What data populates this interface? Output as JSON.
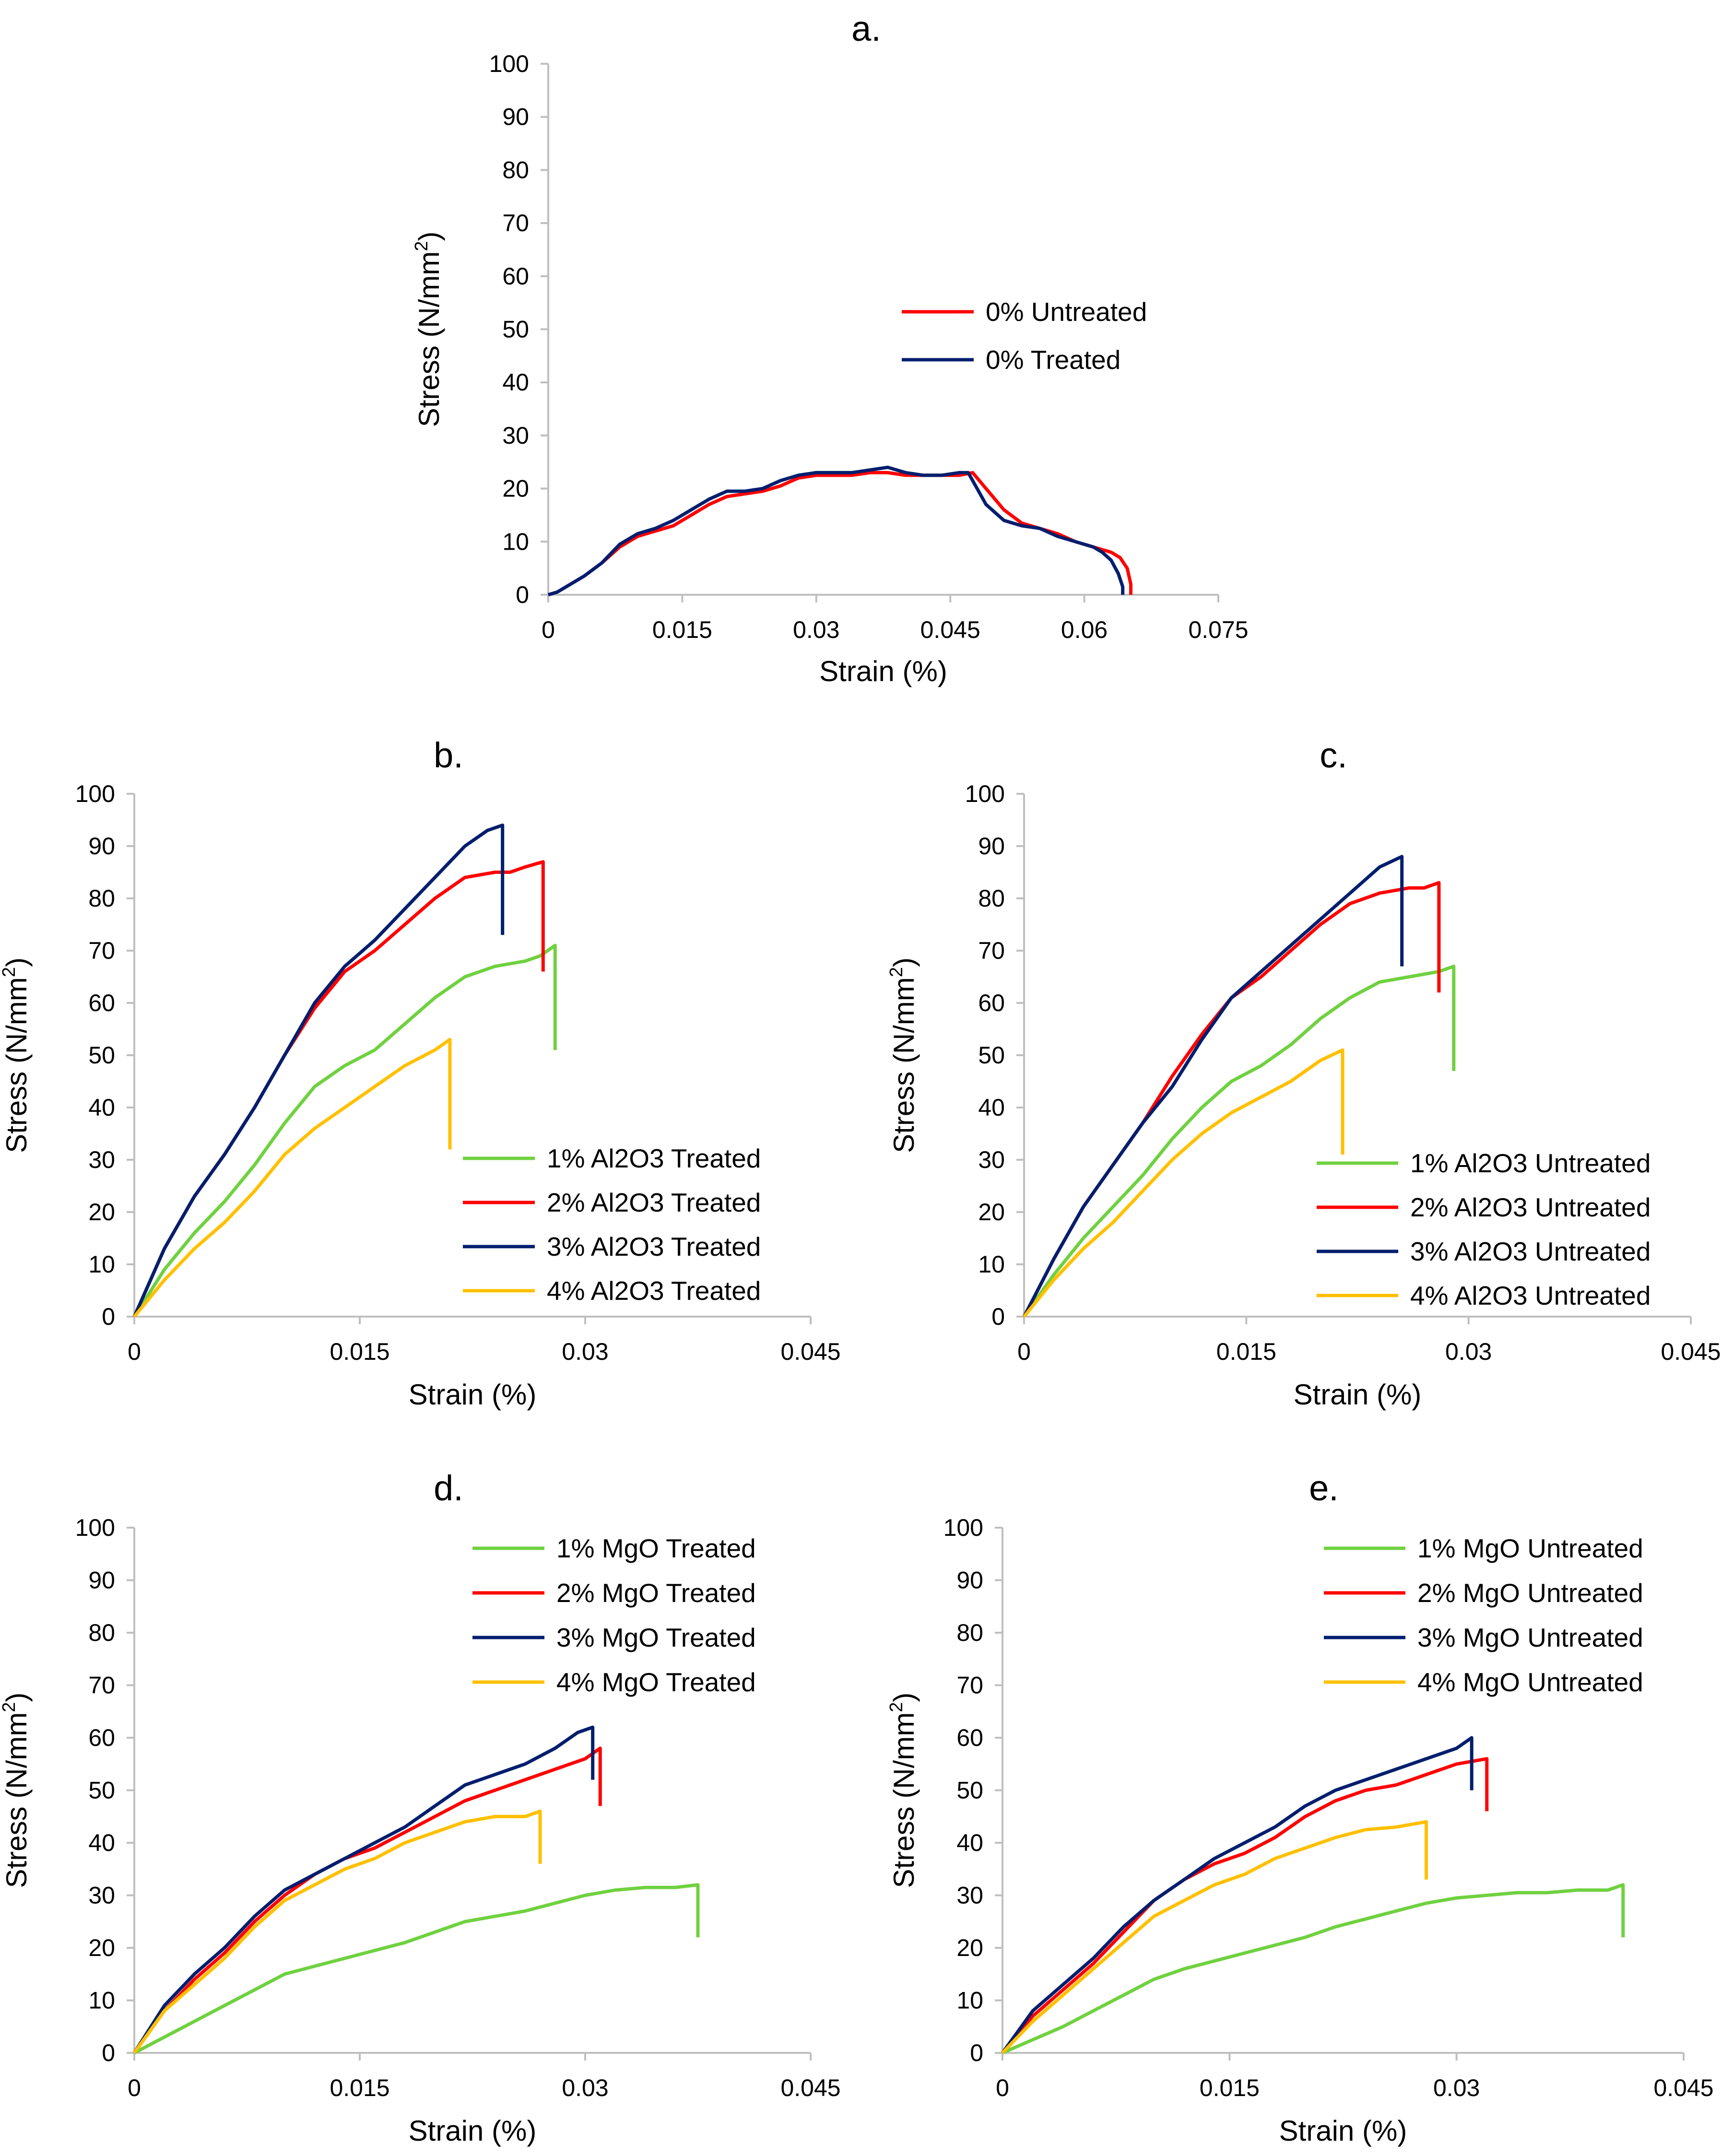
{
  "figure": {
    "colors": {
      "green": "#6fd13f",
      "red": "#ff0000",
      "navy": "#001e6e",
      "yellow": "#ffc000",
      "axis": "#bfbfbf"
    }
  },
  "chart_data": [
    {
      "id": "a",
      "title": "a.",
      "type": "line",
      "xlabel": "Strain (%)",
      "ylabel_main": "Stress (N/mm",
      "ylabel_sup": "2",
      "ylabel_end": ")",
      "xlim": [
        0,
        0.075
      ],
      "ylim": [
        0,
        100
      ],
      "xticks": [
        0,
        0.015,
        0.03,
        0.045,
        0.06,
        0.075
      ],
      "xtick_labels": [
        "0",
        "0.015",
        "0.03",
        "0.045",
        "0.06",
        "0.075"
      ],
      "yticks": [
        0,
        10,
        20,
        30,
        40,
        50,
        60,
        70,
        80,
        90,
        100
      ],
      "ytick_labels": [
        "0",
        "10",
        "20",
        "30",
        "40",
        "50",
        "60",
        "70",
        "80",
        "90",
        "100"
      ],
      "legend_position": "center-right",
      "series": [
        {
          "name": "0% Untreated",
          "color": "#ff0000",
          "x": [
            0,
            0.001,
            0.002,
            0.004,
            0.006,
            0.008,
            0.01,
            0.012,
            0.014,
            0.016,
            0.018,
            0.02,
            0.022,
            0.024,
            0.026,
            0.028,
            0.03,
            0.032,
            0.034,
            0.036,
            0.038,
            0.04,
            0.042,
            0.044,
            0.046,
            0.0475,
            0.049,
            0.051,
            0.053,
            0.055,
            0.057,
            0.059,
            0.061,
            0.063,
            0.064,
            0.0648,
            0.0652,
            0.0652
          ],
          "y": [
            0,
            0.5,
            1.5,
            3.5,
            6,
            9,
            11,
            12,
            13,
            15,
            17,
            18.5,
            19,
            19.5,
            20.5,
            22,
            22.5,
            22.5,
            22.5,
            23,
            23,
            22.5,
            22.5,
            22.5,
            22.5,
            23,
            20,
            16,
            13.5,
            12.5,
            11.5,
            10,
            9,
            8,
            7,
            5,
            2,
            0
          ]
        },
        {
          "name": "0% Treated",
          "color": "#001e6e",
          "x": [
            0,
            0.001,
            0.002,
            0.004,
            0.006,
            0.008,
            0.01,
            0.012,
            0.014,
            0.016,
            0.018,
            0.02,
            0.022,
            0.024,
            0.026,
            0.028,
            0.03,
            0.032,
            0.034,
            0.036,
            0.038,
            0.04,
            0.042,
            0.044,
            0.046,
            0.047,
            0.049,
            0.051,
            0.053,
            0.055,
            0.057,
            0.059,
            0.061,
            0.062,
            0.063,
            0.0638,
            0.0643,
            0.0643
          ],
          "y": [
            0,
            0.5,
            1.5,
            3.5,
            6,
            9.5,
            11.5,
            12.5,
            14,
            16,
            18,
            19.5,
            19.5,
            20,
            21.5,
            22.5,
            23,
            23,
            23,
            23.5,
            24,
            23,
            22.5,
            22.5,
            23,
            23,
            17,
            14,
            13,
            12.5,
            11,
            10,
            9,
            8,
            6.5,
            4,
            1.5,
            0
          ]
        }
      ]
    },
    {
      "id": "b",
      "title": "b.",
      "type": "line",
      "xlabel": "Strain (%)",
      "ylabel_main": "Stress (N/mm",
      "ylabel_sup": "2",
      "ylabel_end": ")",
      "xlim": [
        0,
        0.045
      ],
      "ylim": [
        0,
        100
      ],
      "xticks": [
        0,
        0.015,
        0.03,
        0.045
      ],
      "xtick_labels": [
        "0",
        "0.015",
        "0.03",
        "0.045"
      ],
      "yticks": [
        0,
        10,
        20,
        30,
        40,
        50,
        60,
        70,
        80,
        90,
        100
      ],
      "ytick_labels": [
        "0",
        "10",
        "20",
        "30",
        "40",
        "50",
        "60",
        "70",
        "80",
        "90",
        "100"
      ],
      "legend_position": "bottom-right",
      "series": [
        {
          "name": "1% Al2O3 Treated",
          "color": "#6fd13f",
          "x": [
            0,
            0.002,
            0.004,
            0.006,
            0.008,
            0.01,
            0.012,
            0.014,
            0.016,
            0.018,
            0.02,
            0.022,
            0.024,
            0.026,
            0.027,
            0.028,
            0.028
          ],
          "y": [
            0,
            9,
            16,
            22,
            29,
            37,
            44,
            48,
            51,
            56,
            61,
            65,
            67,
            68,
            69,
            71,
            51
          ]
        },
        {
          "name": "2% Al2O3 Treated",
          "color": "#ff0000",
          "x": [
            0,
            0.002,
            0.004,
            0.006,
            0.008,
            0.01,
            0.012,
            0.014,
            0.016,
            0.018,
            0.02,
            0.022,
            0.024,
            0.025,
            0.026,
            0.0272,
            0.0272
          ],
          "y": [
            0,
            13,
            23,
            31,
            40,
            50,
            59,
            66,
            70,
            75,
            80,
            84,
            85,
            85,
            86,
            87,
            66
          ]
        },
        {
          "name": "3% Al2O3 Treated",
          "color": "#001e6e",
          "x": [
            0,
            0.002,
            0.004,
            0.006,
            0.008,
            0.01,
            0.012,
            0.014,
            0.016,
            0.018,
            0.02,
            0.022,
            0.0235,
            0.0245,
            0.0245
          ],
          "y": [
            0,
            13,
            23,
            31,
            40,
            50,
            60,
            67,
            72,
            78,
            84,
            90,
            93,
            94,
            73
          ]
        },
        {
          "name": "4% Al2O3 Treated",
          "color": "#ffc000",
          "x": [
            0,
            0.002,
            0.004,
            0.006,
            0.008,
            0.01,
            0.012,
            0.014,
            0.016,
            0.018,
            0.02,
            0.021,
            0.021
          ],
          "y": [
            0,
            7,
            13,
            18,
            24,
            31,
            36,
            40,
            44,
            48,
            51,
            53,
            32
          ]
        }
      ]
    },
    {
      "id": "c",
      "title": "c.",
      "type": "line",
      "xlabel": "Strain (%)",
      "ylabel_main": "Stress (N/mm",
      "ylabel_sup": "2",
      "ylabel_end": ")",
      "xlim": [
        0,
        0.045
      ],
      "ylim": [
        0,
        100
      ],
      "xticks": [
        0,
        0.015,
        0.03,
        0.045
      ],
      "xtick_labels": [
        "0",
        "0.015",
        "0.03",
        "0.045"
      ],
      "yticks": [
        0,
        10,
        20,
        30,
        40,
        50,
        60,
        70,
        80,
        90,
        100
      ],
      "ytick_labels": [
        "0",
        "10",
        "20",
        "30",
        "40",
        "50",
        "60",
        "70",
        "80",
        "90",
        "100"
      ],
      "legend_position": "bottom-right",
      "series": [
        {
          "name": "1% Al2O3 Untreated",
          "color": "#6fd13f",
          "x": [
            0,
            0.002,
            0.004,
            0.006,
            0.008,
            0.01,
            0.012,
            0.014,
            0.016,
            0.018,
            0.02,
            0.022,
            0.024,
            0.026,
            0.028,
            0.029,
            0.029
          ],
          "y": [
            0,
            8,
            15,
            21,
            27,
            34,
            40,
            45,
            48,
            52,
            57,
            61,
            64,
            65,
            66,
            67,
            47
          ]
        },
        {
          "name": "2% Al2O3 Untreated",
          "color": "#ff0000",
          "x": [
            0,
            0.002,
            0.004,
            0.006,
            0.008,
            0.01,
            0.012,
            0.014,
            0.016,
            0.018,
            0.02,
            0.022,
            0.024,
            0.026,
            0.027,
            0.028,
            0.028
          ],
          "y": [
            0,
            11,
            21,
            29,
            37,
            46,
            54,
            61,
            65,
            70,
            75,
            79,
            81,
            82,
            82,
            83,
            62
          ]
        },
        {
          "name": "3% Al2O3 Untreated",
          "color": "#001e6e",
          "x": [
            0,
            0.002,
            0.004,
            0.006,
            0.008,
            0.01,
            0.012,
            0.014,
            0.016,
            0.018,
            0.02,
            0.022,
            0.024,
            0.0255,
            0.0255
          ],
          "y": [
            0,
            11,
            21,
            29,
            37,
            44,
            53,
            61,
            66,
            71,
            76,
            81,
            86,
            88,
            67
          ]
        },
        {
          "name": "4% Al2O3 Untreated",
          "color": "#ffc000",
          "x": [
            0,
            0.002,
            0.004,
            0.006,
            0.008,
            0.01,
            0.012,
            0.014,
            0.016,
            0.018,
            0.02,
            0.0215,
            0.0215
          ],
          "y": [
            0,
            7,
            13,
            18,
            24,
            30,
            35,
            39,
            42,
            45,
            49,
            51,
            31
          ]
        }
      ]
    },
    {
      "id": "d",
      "title": "d.",
      "type": "line",
      "xlabel": "Strain (%)",
      "ylabel_main": "Stress (N/mm",
      "ylabel_sup": "2",
      "ylabel_end": ")",
      "xlim": [
        0,
        0.045
      ],
      "ylim": [
        0,
        100
      ],
      "xticks": [
        0,
        0.015,
        0.03,
        0.045
      ],
      "xtick_labels": [
        "0",
        "0.015",
        "0.03",
        "0.045"
      ],
      "yticks": [
        0,
        10,
        20,
        30,
        40,
        50,
        60,
        70,
        80,
        90,
        100
      ],
      "ytick_labels": [
        "0",
        "10",
        "20",
        "30",
        "40",
        "50",
        "60",
        "70",
        "80",
        "90",
        "100"
      ],
      "legend_position": "top-right",
      "series": [
        {
          "name": "1% MgO Treated",
          "color": "#6fd13f",
          "x": [
            0,
            0.002,
            0.004,
            0.006,
            0.008,
            0.01,
            0.012,
            0.014,
            0.016,
            0.018,
            0.02,
            0.022,
            0.024,
            0.026,
            0.028,
            0.03,
            0.032,
            0.034,
            0.036,
            0.0375,
            0.0375
          ],
          "y": [
            0,
            3,
            6,
            9,
            12,
            15,
            16.5,
            18,
            19.5,
            21,
            23,
            25,
            26,
            27,
            28.5,
            30,
            31,
            31.5,
            31.5,
            32,
            22
          ]
        },
        {
          "name": "2% MgO Treated",
          "color": "#ff0000",
          "x": [
            0,
            0.002,
            0.004,
            0.006,
            0.008,
            0.01,
            0.012,
            0.014,
            0.016,
            0.018,
            0.02,
            0.022,
            0.024,
            0.026,
            0.028,
            0.03,
            0.031,
            0.031
          ],
          "y": [
            0,
            8,
            14,
            19,
            25,
            30,
            34,
            37,
            39,
            42,
            45,
            48,
            50,
            52,
            54,
            56,
            58,
            47
          ]
        },
        {
          "name": "3% MgO Treated",
          "color": "#001e6e",
          "x": [
            0,
            0.002,
            0.004,
            0.006,
            0.008,
            0.01,
            0.012,
            0.014,
            0.016,
            0.018,
            0.02,
            0.022,
            0.024,
            0.026,
            0.028,
            0.0295,
            0.0305,
            0.0305
          ],
          "y": [
            0,
            9,
            15,
            20,
            26,
            31,
            34,
            37,
            40,
            43,
            47,
            51,
            53,
            55,
            58,
            61,
            62,
            52
          ]
        },
        {
          "name": "4% MgO Treated",
          "color": "#ffc000",
          "x": [
            0,
            0.002,
            0.004,
            0.006,
            0.008,
            0.01,
            0.012,
            0.014,
            0.016,
            0.018,
            0.02,
            0.022,
            0.024,
            0.026,
            0.027,
            0.027
          ],
          "y": [
            0,
            8,
            13,
            18,
            24,
            29,
            32,
            35,
            37,
            40,
            42,
            44,
            45,
            45,
            46,
            36
          ]
        }
      ]
    },
    {
      "id": "e",
      "title": "e.",
      "type": "line",
      "xlabel": "Strain (%)",
      "ylabel_main": "Stress (N/mm",
      "ylabel_sup": "2",
      "ylabel_end": ")",
      "xlim": [
        0,
        0.045
      ],
      "ylim": [
        0,
        100
      ],
      "xticks": [
        0,
        0.015,
        0.03,
        0.045
      ],
      "xtick_labels": [
        "0",
        "0.015",
        "0.03",
        "0.045"
      ],
      "yticks": [
        0,
        10,
        20,
        30,
        40,
        50,
        60,
        70,
        80,
        90,
        100
      ],
      "ytick_labels": [
        "0",
        "10",
        "20",
        "30",
        "40",
        "50",
        "60",
        "70",
        "80",
        "90",
        "100"
      ],
      "legend_position": "top-right",
      "series": [
        {
          "name": "1% MgO Untreated",
          "color": "#6fd13f",
          "x": [
            0,
            0.002,
            0.004,
            0.006,
            0.008,
            0.01,
            0.012,
            0.014,
            0.016,
            0.018,
            0.02,
            0.022,
            0.024,
            0.026,
            0.028,
            0.03,
            0.032,
            0.034,
            0.036,
            0.038,
            0.04,
            0.041,
            0.041
          ],
          "y": [
            0,
            2.5,
            5,
            8,
            11,
            14,
            16,
            17.5,
            19,
            20.5,
            22,
            24,
            25.5,
            27,
            28.5,
            29.5,
            30,
            30.5,
            30.5,
            31,
            31,
            32,
            22
          ]
        },
        {
          "name": "2% MgO Untreated",
          "color": "#ff0000",
          "x": [
            0,
            0.002,
            0.004,
            0.006,
            0.008,
            0.01,
            0.012,
            0.014,
            0.016,
            0.018,
            0.02,
            0.022,
            0.024,
            0.026,
            0.028,
            0.03,
            0.032,
            0.032
          ],
          "y": [
            0,
            7,
            12,
            17,
            23,
            29,
            33,
            36,
            38,
            41,
            45,
            48,
            50,
            51,
            53,
            55,
            56,
            46
          ]
        },
        {
          "name": "3% MgO Untreated",
          "color": "#001e6e",
          "x": [
            0,
            0.002,
            0.004,
            0.006,
            0.008,
            0.01,
            0.012,
            0.014,
            0.016,
            0.018,
            0.02,
            0.022,
            0.024,
            0.026,
            0.028,
            0.03,
            0.031,
            0.031
          ],
          "y": [
            0,
            8,
            13,
            18,
            24,
            29,
            33,
            37,
            40,
            43,
            47,
            50,
            52,
            54,
            56,
            58,
            60,
            50
          ]
        },
        {
          "name": "4% MgO Untreated",
          "color": "#ffc000",
          "x": [
            0,
            0.002,
            0.004,
            0.006,
            0.008,
            0.01,
            0.012,
            0.014,
            0.016,
            0.018,
            0.02,
            0.022,
            0.024,
            0.026,
            0.028,
            0.028
          ],
          "y": [
            0,
            6,
            11,
            16,
            21,
            26,
            29,
            32,
            34,
            37,
            39,
            41,
            42.5,
            43,
            44,
            33
          ]
        }
      ]
    }
  ]
}
